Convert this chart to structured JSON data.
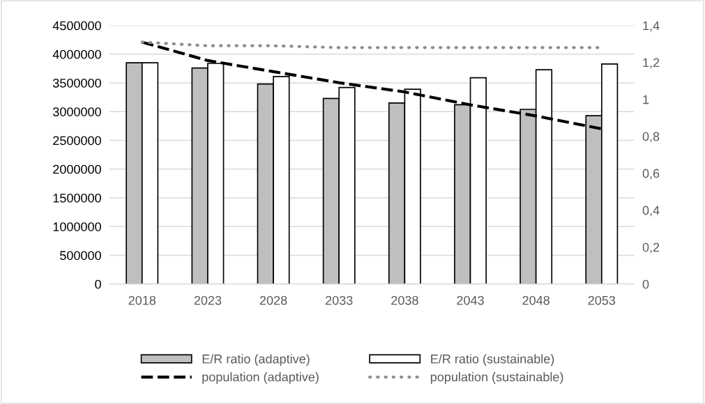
{
  "chart_data": {
    "type": "bar",
    "categories": [
      "2018",
      "2023",
      "2028",
      "2033",
      "2038",
      "2043",
      "2048",
      "2053"
    ],
    "series": [
      {
        "name": "E/R ratio (adaptive)",
        "color": "#bfbfbf",
        "values": [
          3850000,
          3760000,
          3480000,
          3230000,
          3150000,
          3120000,
          3040000,
          2930000
        ]
      },
      {
        "name": "E/R ratio (sustainable)",
        "color": "#ffffff",
        "values": [
          3850000,
          3840000,
          3610000,
          3420000,
          3390000,
          3590000,
          3730000,
          3830000
        ]
      },
      {
        "name": "population (adaptive)",
        "type": "line",
        "axis": "y2",
        "color": "#000000",
        "line_style": "dashed",
        "values": [
          1.31,
          1.21,
          1.15,
          1.09,
          1.04,
          0.97,
          0.91,
          0.84
        ]
      },
      {
        "name": "population (sustainable)",
        "type": "line",
        "axis": "y2",
        "color": "#8c8c8c",
        "line_style": "dotted",
        "values": [
          1.31,
          1.29,
          1.29,
          1.28,
          1.28,
          1.28,
          1.28,
          1.28
        ]
      }
    ],
    "ylim": [
      0,
      4500000
    ],
    "yticks": [
      0,
      500000,
      1000000,
      1500000,
      2000000,
      2500000,
      3000000,
      3500000,
      4000000,
      4500000
    ],
    "y2lim": [
      0,
      1.4
    ],
    "y2ticks": [
      0,
      {
        "value": 0.2,
        "label": "0,2"
      },
      {
        "value": 0.4,
        "label": "0,4"
      },
      {
        "value": 0.6,
        "label": "0,6"
      },
      {
        "value": 0.8,
        "label": "0,8"
      },
      1,
      {
        "value": 1.2,
        "label": "1,2"
      },
      {
        "value": 1.4,
        "label": "1,4"
      }
    ],
    "grid": "y",
    "legend": "bottom"
  }
}
